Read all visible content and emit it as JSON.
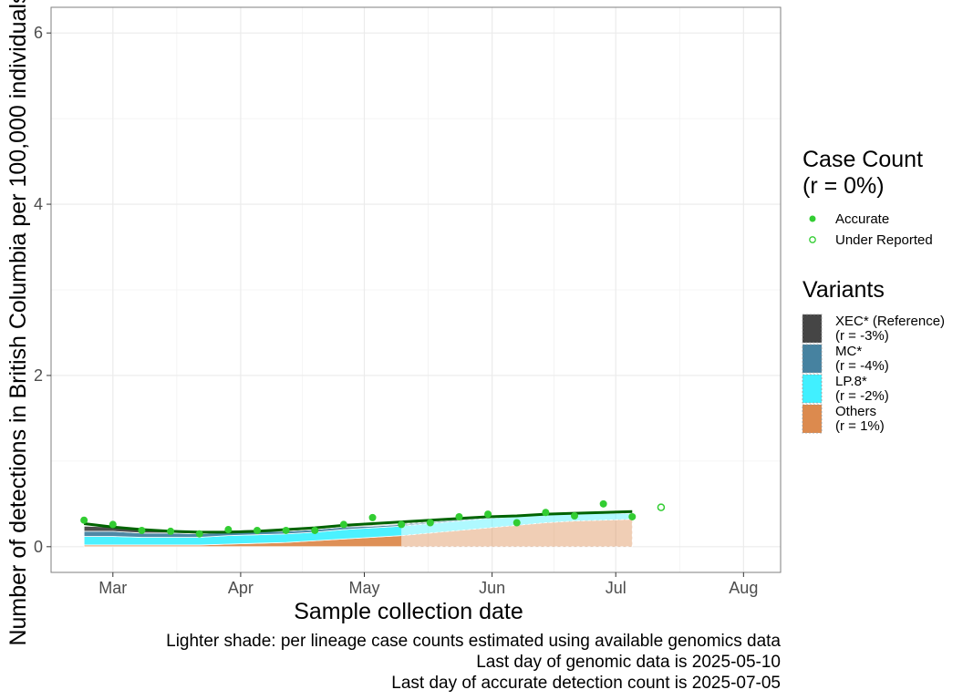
{
  "chart_data": {
    "type": "area",
    "xlabel": "Sample collection date",
    "ylabel": "Number of detections in British Columbia per 100,000 individuals",
    "ylim": [
      -0.3,
      6.3
    ],
    "xlim": [
      "2025-02-14",
      "2025-08-10"
    ],
    "yticks": [
      0,
      2,
      4,
      6
    ],
    "xticks": [
      {
        "date": "2025-03-01",
        "label": "Mar"
      },
      {
        "date": "2025-04-01",
        "label": "Apr"
      },
      {
        "date": "2025-05-01",
        "label": "May"
      },
      {
        "date": "2025-06-01",
        "label": "Jun"
      },
      {
        "date": "2025-07-01",
        "label": "Jul"
      },
      {
        "date": "2025-08-01",
        "label": "Aug"
      }
    ],
    "grid": true,
    "last_genomic_date": "2025-05-10",
    "x": [
      "2025-02-22",
      "2025-03-01",
      "2025-03-08",
      "2025-03-15",
      "2025-03-22",
      "2025-03-29",
      "2025-04-05",
      "2025-04-12",
      "2025-04-19",
      "2025-04-26",
      "2025-05-03",
      "2025-05-10",
      "2025-05-17",
      "2025-05-24",
      "2025-05-31",
      "2025-06-07",
      "2025-06-14",
      "2025-06-21",
      "2025-06-28",
      "2025-07-05"
    ],
    "series": [
      {
        "name": "XEC* (Reference)",
        "color": "#454545",
        "values": [
          0.06,
          0.05,
          0.04,
          0.03,
          0.03,
          0.02,
          0.02,
          0.02,
          0.01,
          0.01,
          0.01,
          0.01,
          0.01,
          0.01,
          0.0,
          0.0,
          0.0,
          0.0,
          0.0,
          0.0
        ]
      },
      {
        "name": "MC*",
        "color": "#4682a0",
        "values": [
          0.06,
          0.06,
          0.05,
          0.05,
          0.04,
          0.04,
          0.04,
          0.03,
          0.03,
          0.03,
          0.02,
          0.02,
          0.02,
          0.02,
          0.02,
          0.02,
          0.02,
          0.01,
          0.01,
          0.01
        ]
      },
      {
        "name": "LP.8*",
        "color": "#41f0ff",
        "values": [
          0.1,
          0.1,
          0.09,
          0.09,
          0.09,
          0.1,
          0.1,
          0.1,
          0.1,
          0.11,
          0.11,
          0.11,
          0.11,
          0.11,
          0.11,
          0.1,
          0.09,
          0.09,
          0.08,
          0.07
        ]
      },
      {
        "name": "Others",
        "color": "#dc8a4e",
        "values": [
          0.02,
          0.02,
          0.02,
          0.02,
          0.02,
          0.03,
          0.04,
          0.05,
          0.07,
          0.09,
          0.11,
          0.13,
          0.16,
          0.19,
          0.22,
          0.25,
          0.28,
          0.3,
          0.31,
          0.32
        ]
      }
    ],
    "trend": {
      "color": "#006400",
      "values": [
        0.27,
        0.23,
        0.2,
        0.18,
        0.17,
        0.17,
        0.18,
        0.2,
        0.22,
        0.25,
        0.27,
        0.29,
        0.31,
        0.33,
        0.35,
        0.36,
        0.38,
        0.39,
        0.4,
        0.41
      ]
    },
    "case_counts": {
      "color": "#32cd32",
      "accurate": [
        {
          "x": "2025-02-22",
          "y": 0.31
        },
        {
          "x": "2025-03-01",
          "y": 0.26
        },
        {
          "x": "2025-03-08",
          "y": 0.19
        },
        {
          "x": "2025-03-15",
          "y": 0.18
        },
        {
          "x": "2025-03-22",
          "y": 0.15
        },
        {
          "x": "2025-03-29",
          "y": 0.2
        },
        {
          "x": "2025-04-05",
          "y": 0.19
        },
        {
          "x": "2025-04-12",
          "y": 0.19
        },
        {
          "x": "2025-04-19",
          "y": 0.19
        },
        {
          "x": "2025-04-26",
          "y": 0.26
        },
        {
          "x": "2025-05-03",
          "y": 0.34
        },
        {
          "x": "2025-05-10",
          "y": 0.26
        },
        {
          "x": "2025-05-17",
          "y": 0.28
        },
        {
          "x": "2025-05-24",
          "y": 0.35
        },
        {
          "x": "2025-05-31",
          "y": 0.38
        },
        {
          "x": "2025-06-07",
          "y": 0.28
        },
        {
          "x": "2025-06-14",
          "y": 0.4
        },
        {
          "x": "2025-06-21",
          "y": 0.36
        },
        {
          "x": "2025-06-28",
          "y": 0.5
        },
        {
          "x": "2025-07-05",
          "y": 0.35
        }
      ],
      "under_reported": [
        {
          "x": "2025-07-12",
          "y": 0.46
        }
      ]
    }
  },
  "legend": {
    "case_count": {
      "title_line1": "Case Count",
      "title_line2": "(r = 0%)",
      "items": [
        {
          "label": "Accurate",
          "kind": "filled"
        },
        {
          "label": "Under Reported",
          "kind": "hollow"
        }
      ]
    },
    "variants": {
      "title": "Variants",
      "items": [
        {
          "label_line1": "XEC* (Reference)",
          "label_line2": "(r = -3%)",
          "color": "#454545"
        },
        {
          "label_line1": "MC*",
          "label_line2": "(r = -4%)",
          "color": "#4682a0"
        },
        {
          "label_line1": "LP.8*",
          "label_line2": "(r = -2%)",
          "color": "#41f0ff"
        },
        {
          "label_line1": "Others",
          "label_line2": "(r = 1%)",
          "color": "#dc8a4e"
        }
      ]
    }
  },
  "captions": [
    "Lighter shade: per lineage case counts estimated using available genomics data",
    "Last day of genomic data is 2025-05-10",
    "Last day of accurate detection count is 2025-07-05"
  ]
}
